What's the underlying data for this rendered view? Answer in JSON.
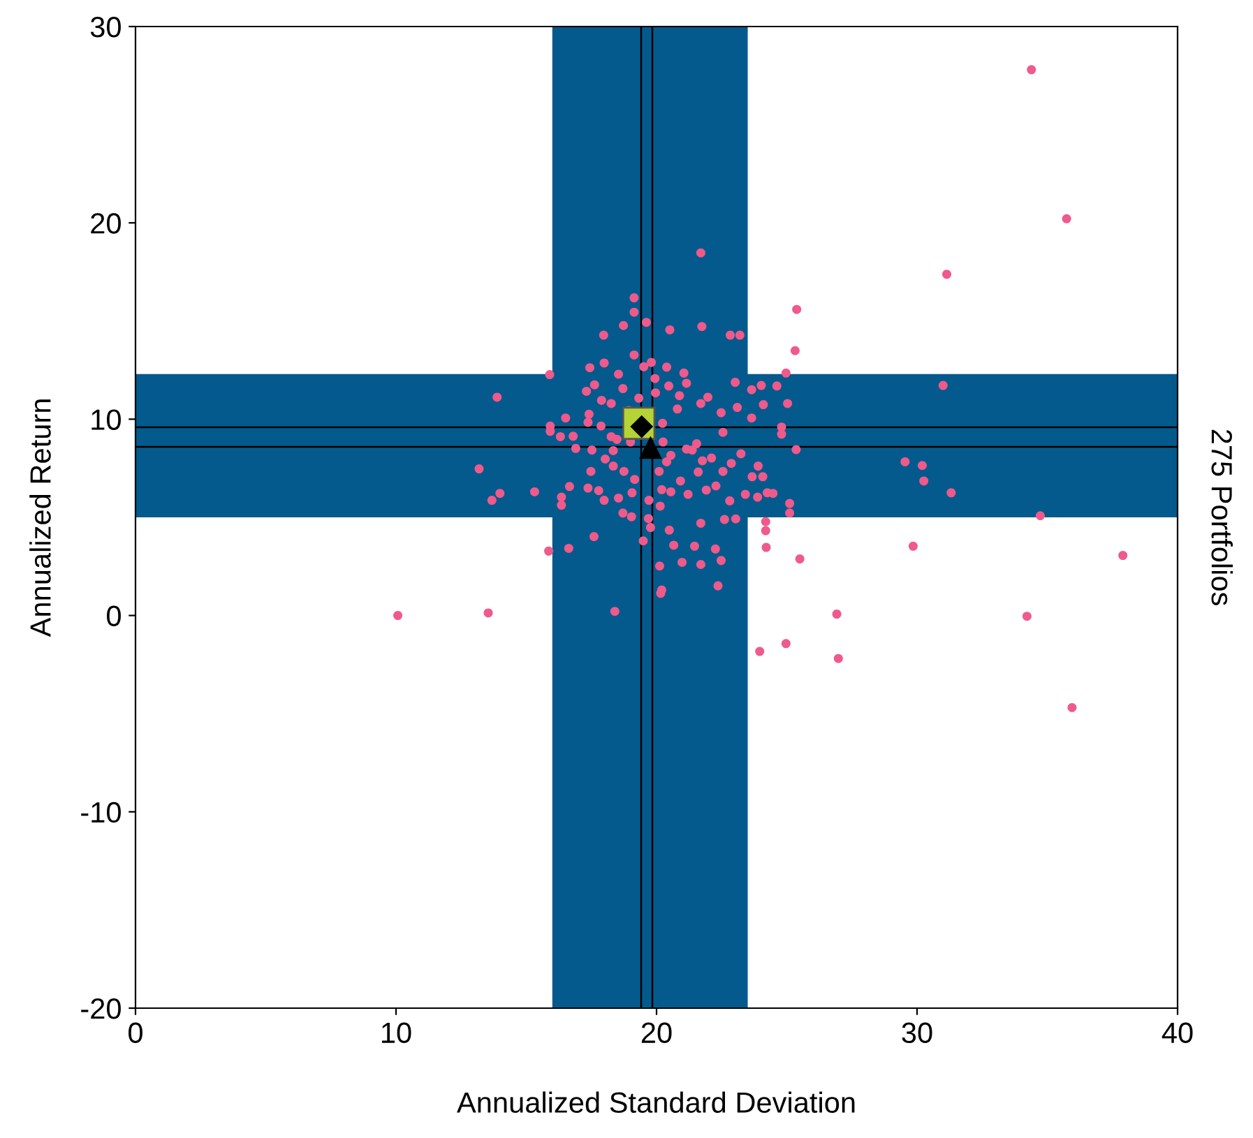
{
  "chart_data": {
    "type": "scatter",
    "xlabel": "Annualized Standard Deviation",
    "ylabel": "Annualized Return",
    "y2label": "275 Portfolios",
    "xlim": [
      0,
      40
    ],
    "xticks": [
      0,
      10,
      20,
      30,
      40
    ],
    "ylim": [
      -20,
      30
    ],
    "yticks": [
      -20,
      -10,
      0,
      10,
      20,
      30
    ],
    "grid": false,
    "legend": false,
    "bands": [
      {
        "axis": "x",
        "from": 16.0,
        "to": 23.5,
        "color": "#045a8d"
      },
      {
        "axis": "y",
        "from": 5.0,
        "to": 12.3,
        "color": "#045a8d"
      }
    ],
    "ref_lines": [
      {
        "axis": "x",
        "value": 19.41,
        "color": "#000000",
        "line_style": "solid"
      },
      {
        "axis": "x",
        "value": 19.84,
        "color": "#000000",
        "line_style": "solid"
      },
      {
        "axis": "y",
        "value": 9.59,
        "color": "#000000",
        "line_style": "solid"
      },
      {
        "axis": "y",
        "value": 8.59,
        "color": "#000000",
        "line_style": "solid"
      }
    ],
    "series": [
      {
        "color": "#ef5a8b",
        "marker": "circle",
        "x": [
          34.39,
          35.74,
          31.14,
          21.7,
          25.38,
          25.32,
          24.97,
          31.0,
          13.88,
          15.9,
          13.19,
          13.68,
          13.99,
          15.32,
          29.54,
          30.2,
          30.26,
          31.31,
          34.73,
          37.9,
          29.85,
          25.5,
          24.19,
          24.19,
          24.21,
          25.11,
          25.11,
          10.07,
          13.54,
          18.4,
          26.92,
          34.22,
          23.96,
          24.97,
          26.98,
          35.95,
          15.86,
          16.63,
          17.6,
          22.36,
          20.16,
          20.2,
          20.98,
          21.7,
          22.48,
          20.12,
          21.46,
          22.26,
          20.66,
          19.49,
          20.49,
          21.7,
          22.61,
          23.04,
          22.81,
          23.88,
          23.41,
          24.25,
          24.47,
          24.8,
          24.8,
          25.03,
          24.62,
          24.02,
          23.65,
          23.02,
          24.1,
          23.1,
          23.65,
          23.2,
          22.83,
          21.74,
          20.51,
          19.61,
          18.73,
          17.97,
          19.14,
          19.14,
          21.97,
          21.7,
          22.48,
          22.55,
          23.24,
          23.9,
          23.67,
          24.08,
          25.36,
          22.87,
          22.11,
          21.6,
          22.28,
          21.91,
          21.21,
          20.92,
          20.55,
          20.2,
          19.71,
          20.39,
          21.37,
          21.54,
          20.8,
          20.88,
          20.39,
          21.05,
          21.15,
          19.94,
          19.51,
          19.8,
          19.14,
          17.99,
          17.44,
          18.54,
          18.71,
          17.62,
          17.31,
          17.89,
          18.26,
          17.41,
          18.93,
          19.32,
          19.96,
          20.47,
          16.51,
          15.92,
          15.92,
          16.8,
          16.31,
          17.37,
          17.87,
          18.26,
          16.9,
          17.52,
          18.03,
          18.34,
          17.48,
          18.34,
          18.75,
          19.16,
          19.06,
          18.54,
          18.71,
          19.04,
          17.37,
          17.78,
          17.99,
          16.66,
          16.35,
          16.35,
          20.14,
          19.69,
          19.77,
          20.1,
          20.55,
          21.15,
          21.76,
          22.55,
          20.23,
          20.25,
          19.0,
          18.48
        ],
        "values": [
          27.8,
          20.21,
          17.38,
          18.47,
          15.59,
          13.49,
          12.35,
          11.72,
          11.12,
          12.27,
          7.47,
          5.87,
          6.22,
          6.3,
          7.83,
          7.64,
          6.85,
          6.25,
          5.08,
          3.06,
          3.53,
          2.88,
          4.78,
          4.32,
          3.47,
          5.71,
          5.22,
          0.0,
          0.13,
          0.21,
          0.07,
          -0.04,
          -1.83,
          -1.43,
          -2.19,
          -4.69,
          3.28,
          3.42,
          4.02,
          1.51,
          1.13,
          1.3,
          2.71,
          2.6,
          2.8,
          2.52,
          3.53,
          3.39,
          3.58,
          3.8,
          4.35,
          4.7,
          4.89,
          4.92,
          5.84,
          6.03,
          6.17,
          6.25,
          6.22,
          9.24,
          9.6,
          10.8,
          11.69,
          11.72,
          11.5,
          11.88,
          10.74,
          10.6,
          10.06,
          14.28,
          14.28,
          14.72,
          14.55,
          14.93,
          14.77,
          14.28,
          15.45,
          16.18,
          11.12,
          10.8,
          10.33,
          9.33,
          8.24,
          7.61,
          7.07,
          7.07,
          8.45,
          7.75,
          8.02,
          7.31,
          6.6,
          6.39,
          6.17,
          6.85,
          6.3,
          6.41,
          5.87,
          7.83,
          8.43,
          8.75,
          10.52,
          11.2,
          12.65,
          12.35,
          11.83,
          12.07,
          12.67,
          12.89,
          13.27,
          12.86,
          12.62,
          12.29,
          11.56,
          11.75,
          11.42,
          10.96,
          10.8,
          10.25,
          10.44,
          11.07,
          11.34,
          11.69,
          10.06,
          9.65,
          9.38,
          9.13,
          9.11,
          9.84,
          9.65,
          9.11,
          8.51,
          8.43,
          7.97,
          8.4,
          7.34,
          7.61,
          7.34,
          6.93,
          6.25,
          5.98,
          5.22,
          5.03,
          6.49,
          6.36,
          5.87,
          6.57,
          6.03,
          5.62,
          5.57,
          4.94,
          4.48,
          7.34,
          8.16,
          8.48,
          7.88,
          7.34,
          9.79,
          8.84,
          8.84,
          8.97
        ]
      },
      {
        "color": "#b5d334",
        "marker": "square",
        "x": [
          19.32
        ],
        "values": [
          9.79
        ]
      },
      {
        "color": "#000000",
        "marker": "diamond",
        "x": [
          19.43
        ],
        "values": [
          9.62
        ]
      },
      {
        "color": "#000000",
        "marker": "triangle",
        "x": [
          19.77
        ],
        "values": [
          8.56
        ]
      }
    ]
  }
}
